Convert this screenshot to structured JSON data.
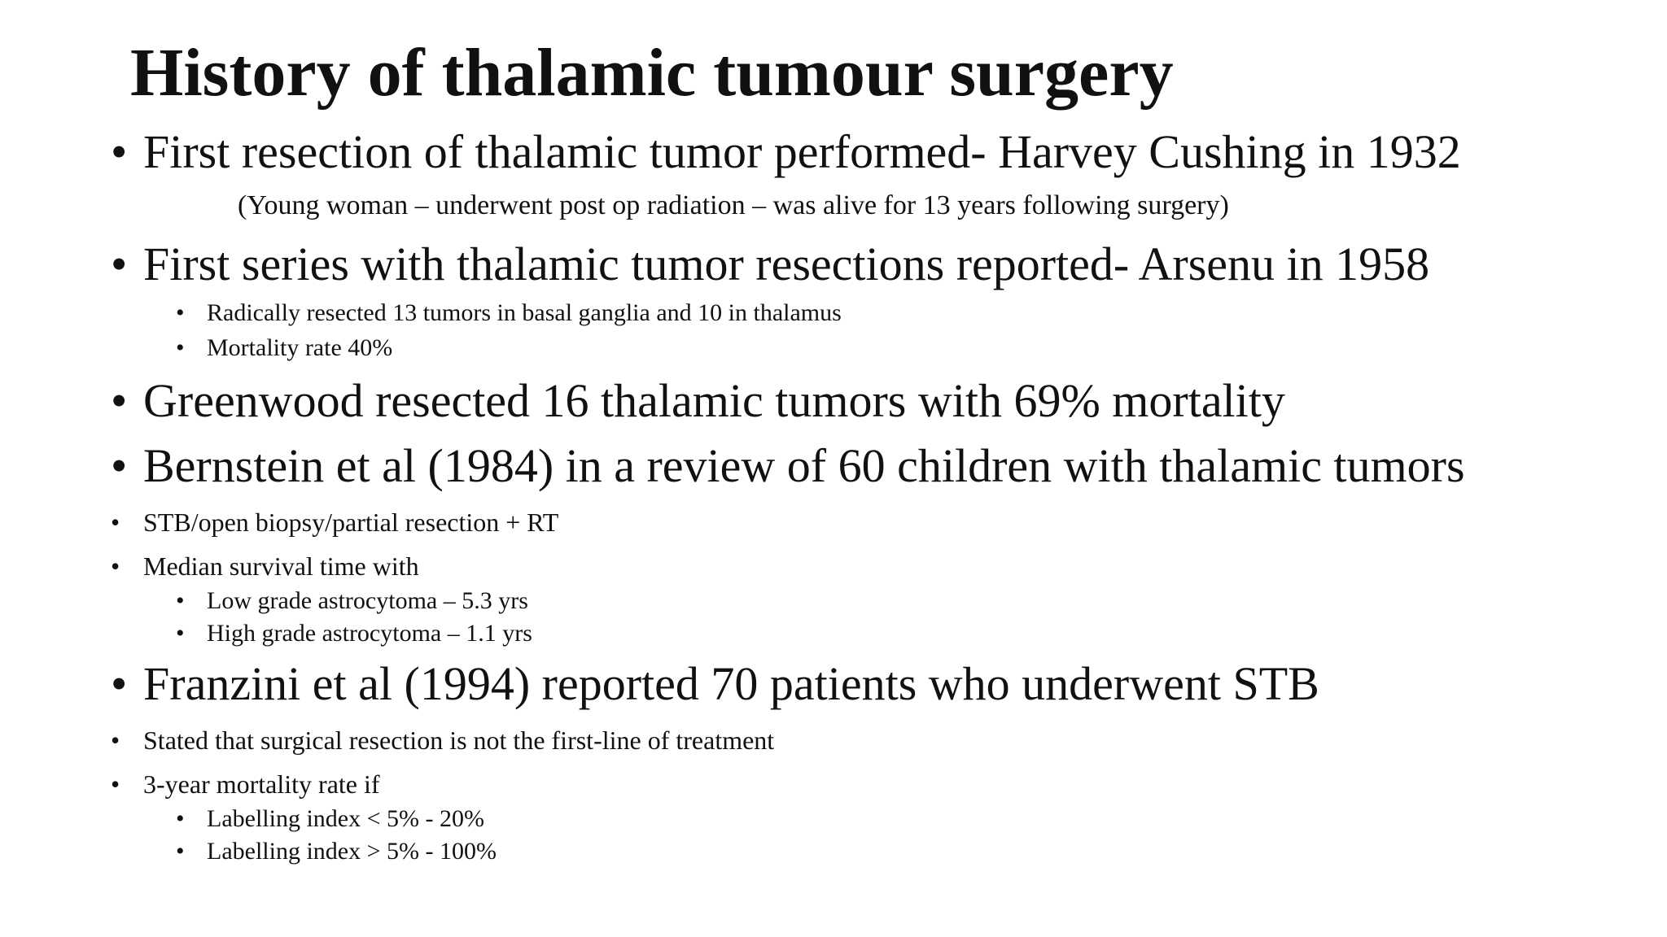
{
  "slide": {
    "title": "History of thalamic tumour surgery",
    "bullet_char": "•",
    "items": [
      {
        "text": "First resection of thalamic tumor performed- Harvey Cushing in 1932"
      },
      {
        "text": "(Young woman – underwent post op radiation – was alive for 13 years following surgery)"
      },
      {
        "text": "First series with thalamic tumor resections reported- Arsenu in 1958"
      },
      {
        "text": "Radically resected 13 tumors in basal ganglia and 10 in thalamus"
      },
      {
        "text": "Mortality rate 40%"
      },
      {
        "text": "Greenwood resected 16 thalamic tumors with 69% mortality"
      },
      {
        "text": "Bernstein et al (1984) in a review of 60 children with thalamic tumors"
      },
      {
        "text": "STB/open biopsy/partial resection + RT"
      },
      {
        "text": "Median survival time with"
      },
      {
        "text": "Low grade astrocytoma – 5.3 yrs"
      },
      {
        "text": "High grade astrocytoma – 1.1 yrs"
      },
      {
        "text": "Franzini et al (1994) reported 70 patients who underwent STB"
      },
      {
        "text": "Stated that surgical resection is not the first-line of treatment"
      },
      {
        "text": "3-year mortality rate if"
      },
      {
        "text": "Labelling index < 5% - 20%"
      },
      {
        "text": "Labelling index > 5% - 100%"
      }
    ]
  }
}
